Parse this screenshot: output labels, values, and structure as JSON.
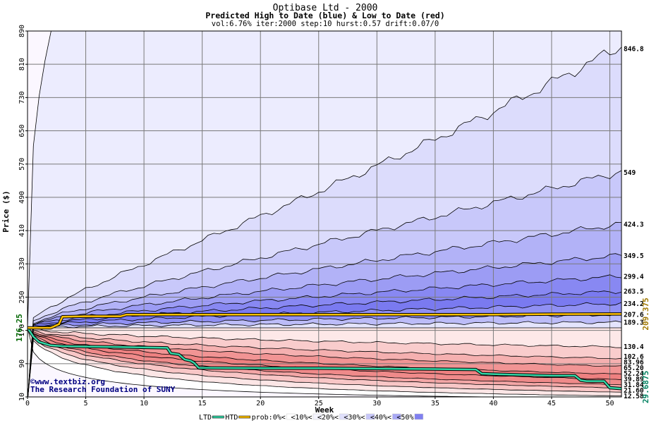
{
  "chart_data": {
    "type": "area",
    "title": "Optibase Ltd - 2000",
    "subtitle": "Predicted High to Date (blue) &  Low to Date (red)",
    "params": "vol:6.76% iter:2000 step:10 hurst:0.57 drift:0.07/0",
    "xlabel": "Week",
    "ylabel": "Price ($)",
    "xlim": [
      0,
      51
    ],
    "ylim": [
      10,
      890
    ],
    "x_ticks": [
      0,
      5,
      10,
      15,
      20,
      25,
      30,
      35,
      40,
      45,
      50
    ],
    "y_ticks": [
      10,
      90,
      170,
      250,
      330,
      410,
      490,
      570,
      650,
      730,
      810,
      890
    ],
    "grid": true,
    "start_price": 176.25,
    "start_price_label": "176.25",
    "high_current_label": "209.375",
    "low_current_label": "29.6875",
    "credit_lines": [
      "©www.textbiz.org",
      "The Research Foundation of SUNY"
    ],
    "upper_band_end_values": [
      846.8,
      549,
      424.3,
      349.5,
      299.4,
      263.5,
      234.2,
      207.6,
      189.3
    ],
    "upper_band_end_labels": [
      "846.8",
      "549",
      "424.3",
      "349.5",
      "299.4",
      "263.5",
      "234.2",
      "207.6",
      "189.3"
    ],
    "lower_band_end_values": [
      130.4,
      102.6,
      83.96,
      65.2,
      52.24,
      39.89,
      31.84,
      21.6,
      12.58
    ],
    "lower_band_end_labels": [
      "130.4",
      "102.6",
      "83.96",
      "65.20",
      "52.24",
      "39.89",
      "31.84",
      "21.60",
      "12.58"
    ],
    "upper_fill_colors": [
      "#ececfe",
      "#dcdcfc",
      "#c8c8fa",
      "#b2b2f7",
      "#9c9cf4",
      "#8888f2",
      "#7a7af0",
      "#9090f3",
      "#bcbcf8",
      "#e4e4fd"
    ],
    "lower_fill_colors": [
      "#fde8e8",
      "#f9cccc",
      "#f5b0b0",
      "#f19494",
      "#ee8080",
      "#ef8a8a",
      "#f3a6a6",
      "#f8c6c6",
      "#fce6e6"
    ],
    "series": [
      {
        "name": "LTD",
        "color": "#33d6a6",
        "x": [
          0,
          0.5,
          1,
          1.5,
          2,
          3,
          5,
          8,
          12,
          12.3,
          13,
          13.5,
          14,
          14.3,
          14.7,
          20,
          25,
          30,
          35,
          38.5,
          39,
          40,
          45,
          47,
          47.5,
          48,
          49.5,
          50,
          51
        ],
        "y": [
          176.25,
          155,
          142,
          138,
          134,
          132,
          131,
          130,
          128,
          115,
          112,
          100,
          97,
          92,
          80,
          79,
          79,
          78,
          77,
          76,
          66,
          65,
          61,
          61,
          50,
          48,
          48,
          32,
          30
        ]
      },
      {
        "name": "HTD",
        "color": "#ffc000",
        "x": [
          0,
          2,
          2.7,
          3,
          5,
          8,
          8.5,
          10,
          15,
          20,
          25,
          30,
          35,
          40,
          45,
          51
        ],
        "y": [
          176.25,
          176.25,
          185,
          203,
          204,
          204,
          208,
          208,
          208,
          208,
          208,
          208,
          208,
          208,
          209,
          209.375
        ]
      }
    ],
    "legend": {
      "position": "bottom",
      "items": [
        {
          "label": "LTD",
          "color": "#33d6a6",
          "kind": "line"
        },
        {
          "label": "HTD",
          "color": "#ffc000",
          "kind": "line"
        },
        {
          "label": "prob:0%<",
          "color": "#ffffff",
          "kind": "box"
        },
        {
          "label": "<10%<",
          "color": "#f4f4fe",
          "kind": "box"
        },
        {
          "label": "<20%<",
          "color": "#e0e0fc",
          "kind": "box"
        },
        {
          "label": "<30%<",
          "color": "#c6c6f8",
          "kind": "box"
        },
        {
          "label": "<40%<",
          "color": "#a8a8f5",
          "kind": "box"
        },
        {
          "label": "<50%",
          "color": "#8080f0",
          "kind": "box"
        }
      ]
    }
  }
}
